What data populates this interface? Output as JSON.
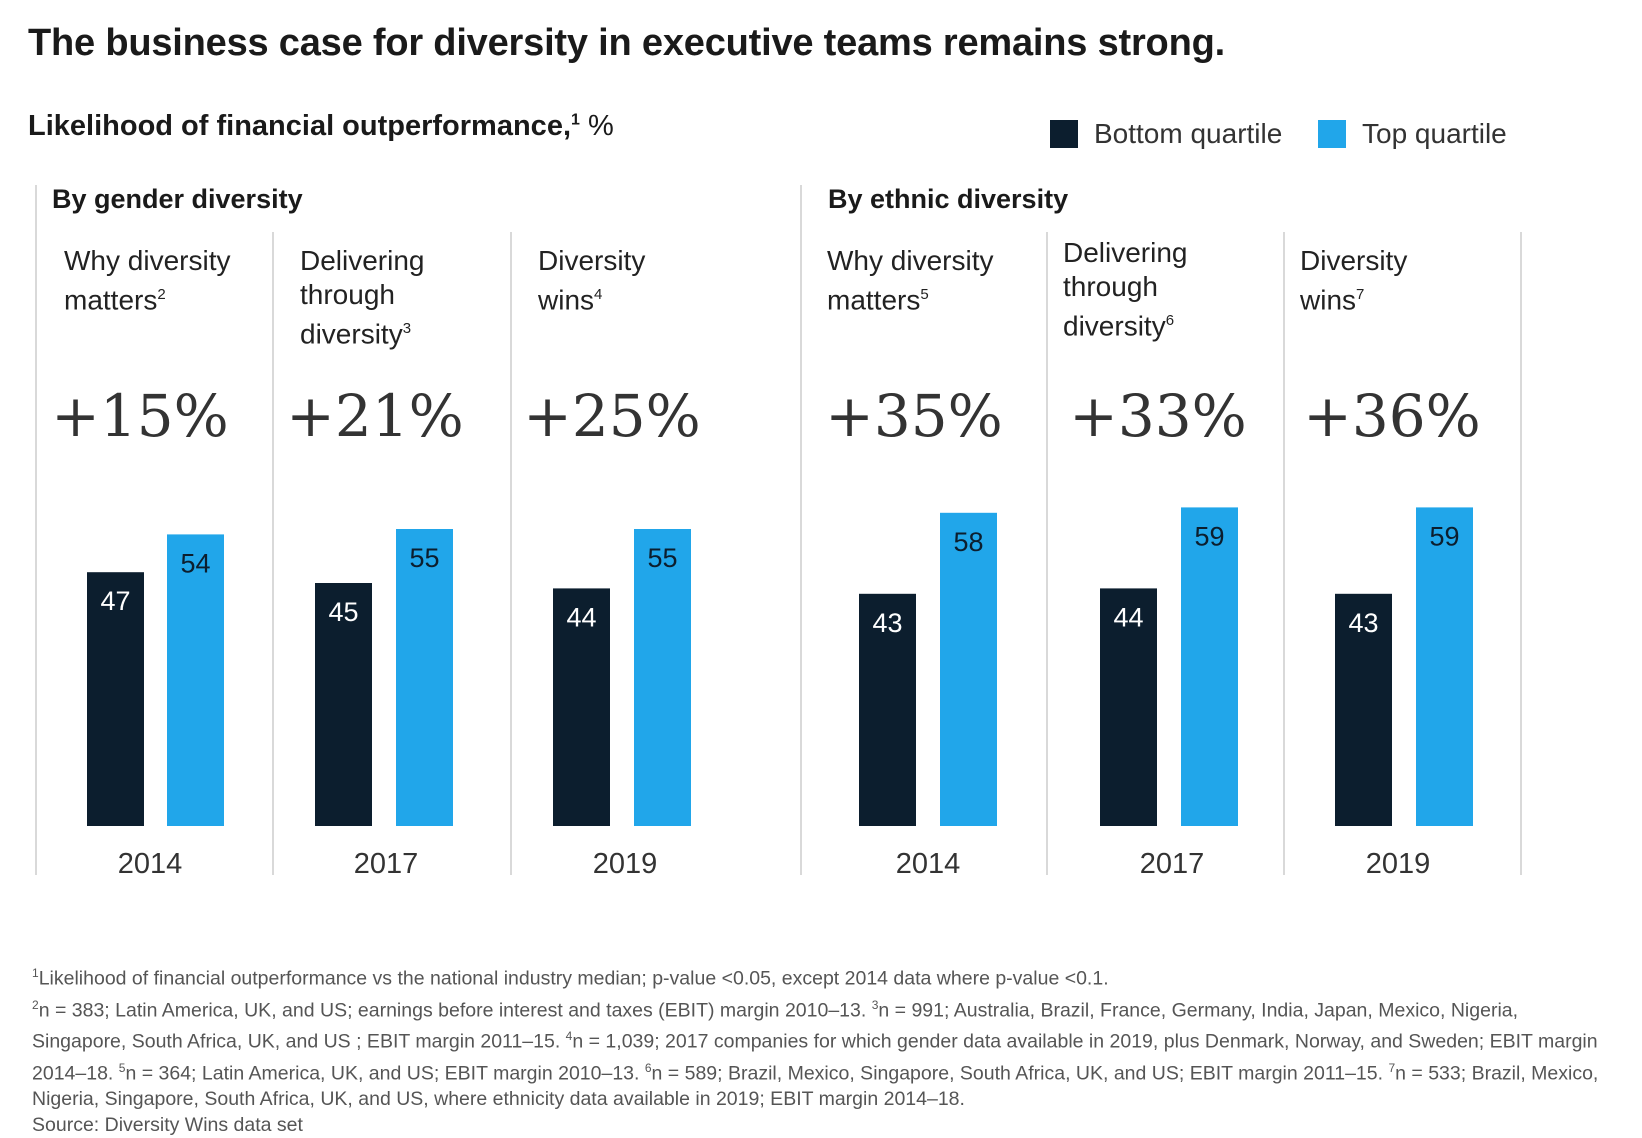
{
  "title": "The business case for diversity in executive teams remains strong.",
  "subtitle": {
    "text": "Likelihood of financial outperformance,",
    "sup": "1",
    "unit": " %"
  },
  "legend": {
    "bottom_label": "Bottom quartile",
    "top_label": "Top quartile"
  },
  "colors": {
    "bottom_quartile": "#0c1e2e",
    "top_quartile": "#21a6ea"
  },
  "groups": [
    {
      "label": "By gender diversity",
      "panels": [
        {
          "title": "Why diversity matters",
          "sup": "2",
          "uplift": "+15%",
          "year": "2014"
        },
        {
          "title": "Delivering through diversity",
          "sup": "3",
          "uplift": "+21%",
          "year": "2017"
        },
        {
          "title": "Diversity wins",
          "sup": "4",
          "uplift": "+25%",
          "year": "2019"
        }
      ]
    },
    {
      "label": "By ethnic diversity",
      "panels": [
        {
          "title": "Why diversity matters",
          "sup": "5",
          "uplift": "+35%",
          "year": "2014"
        },
        {
          "title": "Delivering through diversity",
          "sup": "6",
          "uplift": "+33%",
          "year": "2017"
        },
        {
          "title": "Diversity wins",
          "sup": "7",
          "uplift": "+36%",
          "year": "2019"
        }
      ]
    }
  ],
  "chart_data": {
    "type": "bar",
    "title": "The business case for diversity in executive teams remains strong.",
    "subtitle": "Likelihood of financial outperformance, %",
    "categories": [
      "2014",
      "2017",
      "2019",
      "2014",
      "2017",
      "2019"
    ],
    "series": [
      {
        "name": "Bottom quartile",
        "values": [
          47,
          45,
          44,
          43,
          44,
          43
        ]
      },
      {
        "name": "Top quartile",
        "values": [
          54,
          55,
          55,
          58,
          59,
          59
        ]
      }
    ],
    "ylim": [
      0,
      59
    ],
    "grid": false,
    "legend": "top-right"
  },
  "footnotes": {
    "line1": "Likelihood of financial outperformance vs the national industry median; p-value <0.05, except 2014 data where p-value <0.1.",
    "n2": "n = 383; Latin America, UK, and US; earnings before interest and taxes (EBIT) margin 2010–13. ",
    "n3": "n = 991; Australia, Brazil, France, Germany, India, Japan, Mexico, Nigeria, Singapore, South Africa, UK, and US ; EBIT margin 2011–15. ",
    "n4": "n = 1,039; 2017 companies for which gender data available in 2019, plus Denmark, Norway, and Sweden;  EBIT margin 2014–18. ",
    "n5": "n = 364; Latin America, UK, and US; EBIT margin 2010–13. ",
    "n6": "n = 589; Brazil, Mexico, Singapore, South Africa, UK, and US; EBIT margin 2011–15. ",
    "n7": "n = 533; Brazil, Mexico, Nigeria, Singapore, South Africa, UK, and US, where ethnicity data available in 2019; EBIT margin 2014–18.",
    "source": "Source: Diversity Wins data set"
  }
}
